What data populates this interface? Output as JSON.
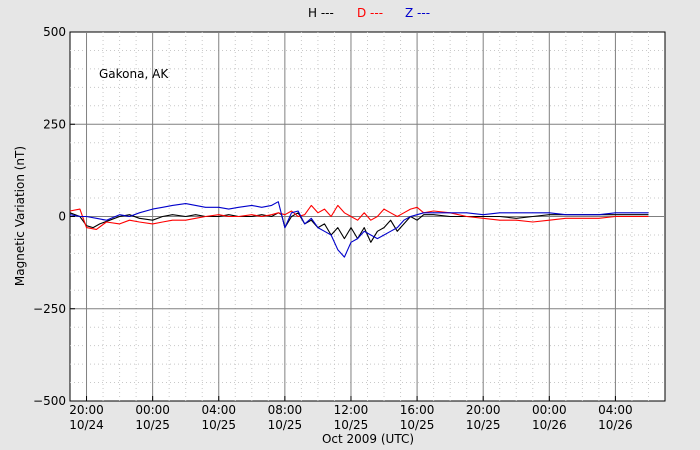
{
  "chart_data": {
    "type": "line",
    "annotation": "Gakona, AK",
    "xlabel": "Oct 2009 (UTC)",
    "ylabel": "Magnetic Variation (nT)",
    "ylim": [
      -500,
      500
    ],
    "yticks": [
      500,
      250,
      0,
      -250,
      -500
    ],
    "ytick_labels": [
      "500",
      "250",
      "0",
      "−250",
      "−500"
    ],
    "xlim": [
      -0.5,
      17.5
    ],
    "xticks": [
      {
        "x": 0,
        "time": "20:00",
        "date": "10/24"
      },
      {
        "x": 2,
        "time": "00:00",
        "date": "10/25"
      },
      {
        "x": 4,
        "time": "04:00",
        "date": "10/25"
      },
      {
        "x": 6,
        "time": "08:00",
        "date": "10/25"
      },
      {
        "x": 8,
        "time": "12:00",
        "date": "10/25"
      },
      {
        "x": 10,
        "time": "16:00",
        "date": "10/25"
      },
      {
        "x": 12,
        "time": "20:00",
        "date": "10/25"
      },
      {
        "x": 14,
        "time": "00:00",
        "date": "10/26"
      },
      {
        "x": 16,
        "time": "04:00",
        "date": "10/26"
      }
    ],
    "grid": true,
    "legend_position": "top-center",
    "series": [
      {
        "name": "H ---",
        "color": "#000000",
        "x": [
          -0.5,
          -0.2,
          0,
          0.2,
          0.4,
          0.7,
          1,
          1.3,
          1.6,
          2,
          2.3,
          2.6,
          3,
          3.3,
          3.6,
          4,
          4.3,
          4.6,
          5,
          5.3,
          5.6,
          5.8,
          5.9,
          6,
          6.2,
          6.4,
          6.6,
          6.8,
          7,
          7.2,
          7.4,
          7.6,
          7.8,
          8,
          8.2,
          8.4,
          8.6,
          8.8,
          9,
          9.2,
          9.4,
          9.6,
          9.8,
          10,
          10.2,
          10.5,
          11,
          11.5,
          12,
          12.5,
          13,
          13.5,
          14,
          14.5,
          15,
          15.5,
          16,
          16.5,
          17
        ],
        "y": [
          10,
          0,
          -25,
          -30,
          -20,
          -10,
          0,
          5,
          -5,
          -10,
          0,
          5,
          0,
          5,
          0,
          0,
          5,
          0,
          0,
          5,
          0,
          10,
          5,
          -30,
          0,
          10,
          -20,
          -10,
          -30,
          -20,
          -50,
          -30,
          -60,
          -30,
          -60,
          -30,
          -70,
          -40,
          -30,
          -10,
          -40,
          -20,
          0,
          -10,
          5,
          5,
          0,
          0,
          0,
          0,
          -5,
          0,
          5,
          5,
          5,
          5,
          5,
          5,
          5
        ]
      },
      {
        "name": "D ---",
        "color": "#ff0000",
        "x": [
          -0.5,
          -0.2,
          0,
          0.3,
          0.6,
          1,
          1.3,
          1.6,
          2,
          2.3,
          2.6,
          3,
          3.3,
          3.6,
          4,
          4.3,
          4.6,
          5,
          5.3,
          5.6,
          5.8,
          6,
          6.2,
          6.4,
          6.6,
          6.8,
          7,
          7.2,
          7.4,
          7.6,
          7.8,
          8,
          8.2,
          8.4,
          8.6,
          8.8,
          9,
          9.2,
          9.4,
          9.6,
          9.8,
          10,
          10.2,
          10.5,
          11,
          11.5,
          12,
          12.5,
          13,
          13.5,
          14,
          14.5,
          15,
          15.5,
          16,
          16.5,
          17
        ],
        "y": [
          15,
          20,
          -30,
          -35,
          -15,
          -20,
          -10,
          -15,
          -20,
          -15,
          -10,
          -10,
          -5,
          0,
          5,
          0,
          0,
          5,
          0,
          5,
          10,
          5,
          15,
          0,
          5,
          30,
          10,
          20,
          0,
          30,
          10,
          0,
          -10,
          10,
          -10,
          0,
          20,
          10,
          0,
          10,
          20,
          25,
          10,
          15,
          10,
          0,
          -5,
          -10,
          -10,
          -15,
          -10,
          -5,
          -5,
          -5,
          0,
          0,
          0
        ]
      },
      {
        "name": "Z ---",
        "color": "#0000cc",
        "x": [
          -0.5,
          -0.2,
          0,
          0.3,
          0.6,
          1,
          1.3,
          1.6,
          2,
          2.3,
          2.6,
          3,
          3.3,
          3.6,
          4,
          4.3,
          4.6,
          5,
          5.3,
          5.6,
          5.8,
          6,
          6.2,
          6.4,
          6.6,
          6.8,
          7,
          7.2,
          7.4,
          7.6,
          7.8,
          8,
          8.2,
          8.4,
          8.6,
          8.8,
          9,
          9.2,
          9.4,
          9.6,
          9.8,
          10,
          10.2,
          10.5,
          11,
          11.5,
          12,
          12.5,
          13,
          13.5,
          14,
          14.5,
          15,
          15.5,
          16,
          16.5,
          17
        ],
        "y": [
          5,
          0,
          0,
          -5,
          -10,
          5,
          0,
          10,
          20,
          25,
          30,
          35,
          30,
          25,
          25,
          20,
          25,
          30,
          25,
          30,
          40,
          -30,
          10,
          15,
          -20,
          -5,
          -30,
          -40,
          -50,
          -90,
          -110,
          -70,
          -60,
          -40,
          -50,
          -60,
          -50,
          -40,
          -30,
          -10,
          0,
          5,
          10,
          10,
          10,
          10,
          5,
          10,
          10,
          10,
          10,
          5,
          5,
          5,
          10,
          10,
          10
        ]
      }
    ]
  }
}
